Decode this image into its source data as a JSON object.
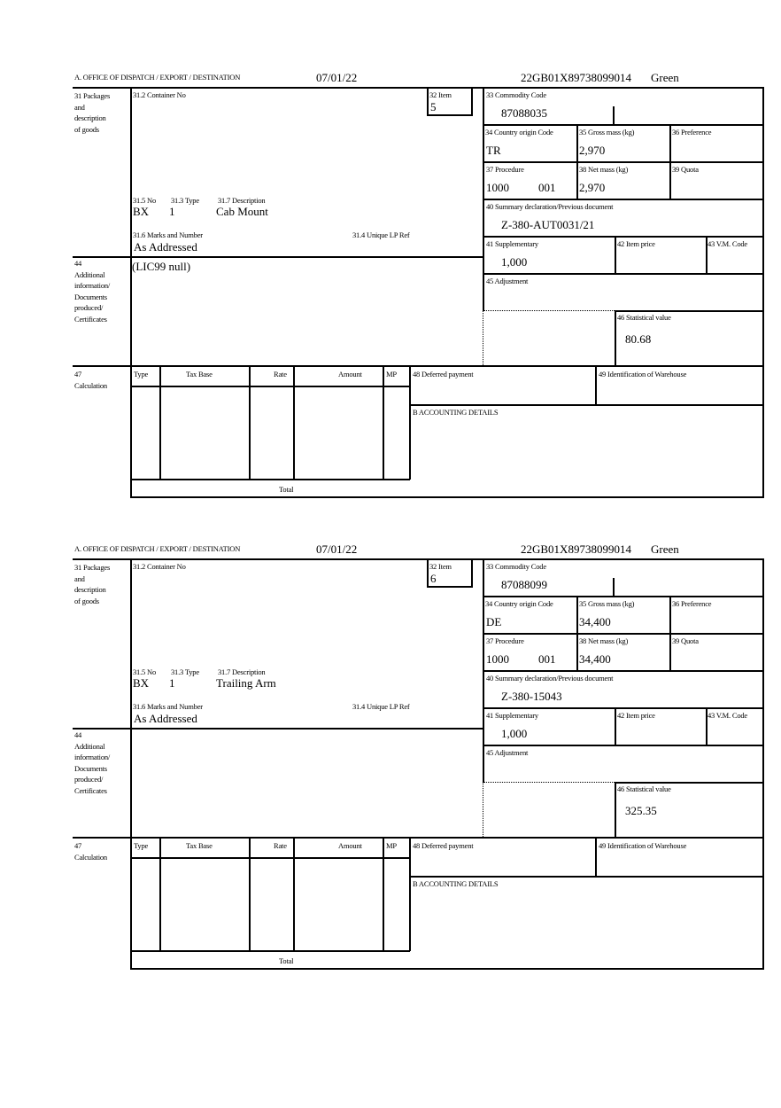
{
  "labels": {
    "office": "A. OFFICE OF DISPATCH / EXPORT / DESTINATION",
    "packages": [
      "31 Packages",
      "and",
      "description",
      "of goods"
    ],
    "container_no": "31.2 Container No",
    "item": "32 Item",
    "commodity_code": "33 Commodity Code",
    "country_origin": "34 Country origin Code",
    "gross_mass": "35 Gross mass (kg)",
    "preference": "36 Preference",
    "procedure": "37 Procedure",
    "net_mass": "38 Net mass (kg)",
    "quota": "39 Quota",
    "summary_declaration": "40 Summary declaration/Previous document",
    "supplementary": "41 Supplementary",
    "item_price": "42 Item price",
    "vm_code": "43 V.M. Code",
    "adjustment": "45 Adjustment",
    "statistical_value": "46 Statistical value",
    "no": "31.5 No",
    "type": "31.3 Type",
    "description": "31.7 Description",
    "marks": "31.6 Marks and Number",
    "unique_lp_ref": "31.4 Unique LP Ref",
    "additional_info": [
      "44",
      "Additional",
      "information/",
      "Documents",
      "produced/",
      "Certificates"
    ],
    "calculation": [
      "47",
      "Calculation"
    ],
    "calc_headers": [
      "Type",
      "Tax Base",
      "Rate",
      "Amount",
      "MP"
    ],
    "deferred_payment": "48 Deferred payment",
    "warehouse": "49 Identification of Warehouse",
    "accounting": "B ACCOUNTING DETAILS",
    "total": "Total"
  },
  "blocks": [
    {
      "date": "07/01/22",
      "reference": "22GB01X89738099014",
      "route": "Green",
      "item": "5",
      "commodity_code": "87088035",
      "country_origin": "TR",
      "gross_mass": "2,970",
      "procedure": "1000",
      "procedure_extra": "001",
      "net_mass": "2,970",
      "summary_declaration": "Z-380-AUT0031/21",
      "supplementary": "1,000",
      "statistical_value": "80.68",
      "package_kind": "BX",
      "package_count": "1",
      "description": "Cab Mount",
      "marks": "As Addressed",
      "additional_info": "(LIC99 null)"
    },
    {
      "date": "07/01/22",
      "reference": "22GB01X89738099014",
      "route": "Green",
      "item": "6",
      "commodity_code": "87088099",
      "country_origin": "DE",
      "gross_mass": "34,400",
      "procedure": "1000",
      "procedure_extra": "001",
      "net_mass": "34,400",
      "summary_declaration": "Z-380-15043",
      "supplementary": "1,000",
      "statistical_value": "325.35",
      "package_kind": "BX",
      "package_count": "1",
      "description": "Trailing Arm",
      "marks": "As Addressed",
      "additional_info": ""
    }
  ]
}
